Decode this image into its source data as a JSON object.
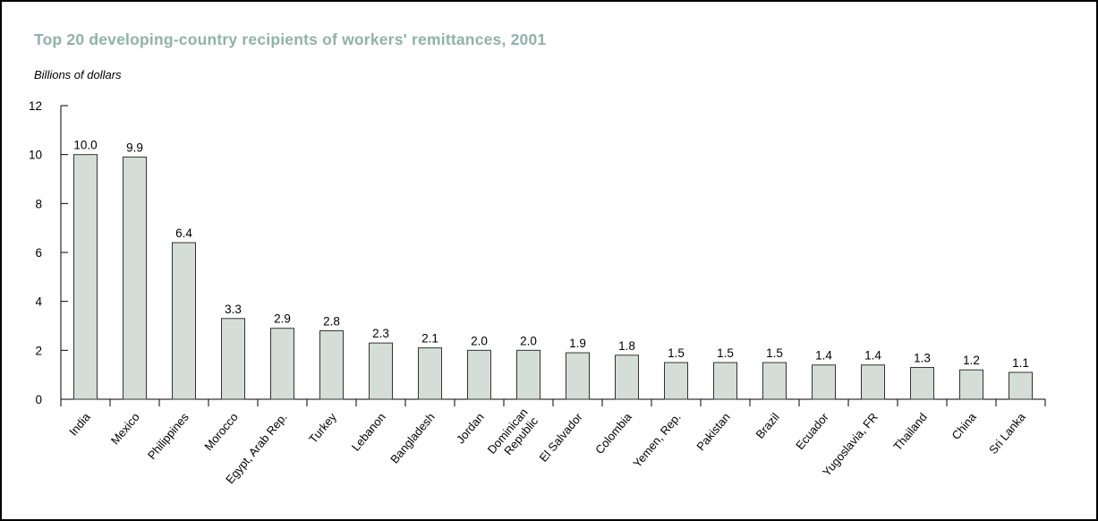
{
  "chart_data": {
    "type": "bar",
    "title": "Top 20 developing-country recipients of workers' remittances, 2001",
    "ylabel": "Billions of dollars",
    "xlabel": "",
    "ylim": [
      0,
      12
    ],
    "yticks": [
      0,
      2,
      4,
      6,
      8,
      10,
      12
    ],
    "grid": false,
    "colors": {
      "bar_fill": "#d5ddd8",
      "bar_stroke": "#333333",
      "title": "#8fb3a6"
    },
    "categories": [
      "India",
      "Mexico",
      "Philippines",
      "Morocco",
      "Egypt, Arab Rep.",
      "Turkey",
      "Lebanon",
      "Bangladesh",
      "Jordan",
      "Dominican Republic",
      "El Salvador",
      "Colombia",
      "Yemen, Rep.",
      "Pakistan",
      "Brazil",
      "Ecuador",
      "Yugoslavia, FR",
      "Thailand",
      "China",
      "Sri Lanka"
    ],
    "values": [
      10.0,
      9.9,
      6.4,
      3.3,
      2.9,
      2.8,
      2.3,
      2.1,
      2.0,
      2.0,
      1.9,
      1.8,
      1.5,
      1.5,
      1.5,
      1.4,
      1.4,
      1.3,
      1.2,
      1.1
    ],
    "value_labels": [
      "10.0",
      "9.9",
      "6.4",
      "3.3",
      "2.9",
      "2.8",
      "2.3",
      "2.1",
      "2.0",
      "2.0",
      "1.9",
      "1.8",
      "1.5",
      "1.5",
      "1.5",
      "1.4",
      "1.4",
      "1.3",
      "1.2",
      "1.1"
    ]
  }
}
